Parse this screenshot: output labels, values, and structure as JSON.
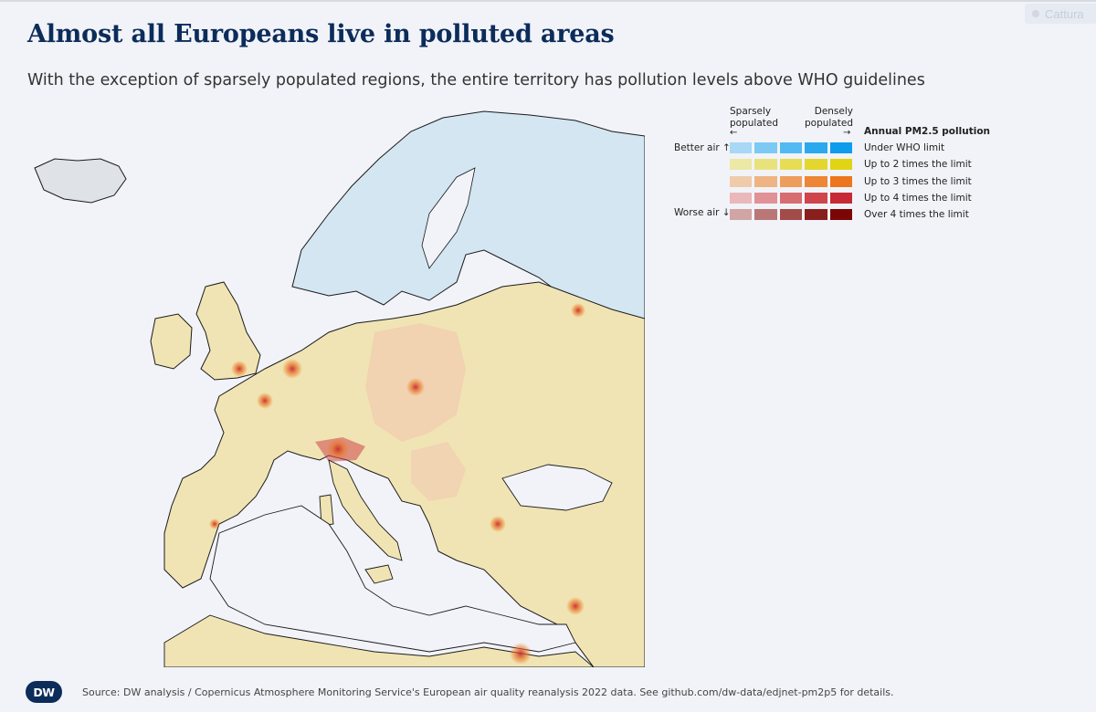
{
  "header": {
    "title": "Almost all Europeans live in polluted areas",
    "subtitle": "With the exception of sparsely populated regions, the entire territory has pollution levels above WHO guidelines"
  },
  "top_chip": {
    "label": "Cattura"
  },
  "legend": {
    "sparse_line1": "Sparsely",
    "sparse_line2": "populated",
    "dense_line1": "Densely",
    "dense_line2": "populated",
    "arrow_left": "←",
    "arrow_right": "→",
    "title": "Annual PM2.5 pollution",
    "better": "Better air ↑",
    "worse": "Worse air ↓",
    "classes": [
      {
        "label": "Under WHO limit",
        "colors": [
          "#a8d8f5",
          "#7ccaf4",
          "#52baf2",
          "#2aa9ef",
          "#0f9ced"
        ]
      },
      {
        "label": "Up to 2 times the limit",
        "colors": [
          "#ece8a6",
          "#e9e27c",
          "#e6dc55",
          "#e3d62f",
          "#e1d414"
        ]
      },
      {
        "label": "Up to 3 times the limit",
        "colors": [
          "#f0cbaa",
          "#efb483",
          "#ee9d5c",
          "#ed8636",
          "#ec7620"
        ]
      },
      {
        "label": "Up to 4 times the limit",
        "colors": [
          "#e8b8bb",
          "#e09296",
          "#d76c71",
          "#cf454c",
          "#c72a34"
        ]
      },
      {
        "label": "Over 4 times the limit",
        "colors": [
          "#d1a5a4",
          "#b97877",
          "#a14b4a",
          "#89201e",
          "#7a0606"
        ]
      }
    ]
  },
  "map": {
    "colors": {
      "sea": "#f1f3f8",
      "under_limit": "#d3e6f1",
      "up_to_2x": "#f0e4b4",
      "up_to_3x": "#f1cfb0",
      "no_data": "#dfe2e6",
      "border": "#5a5a5a",
      "coast": "#1a1a1a"
    }
  },
  "footer": {
    "logo": "DW",
    "source": "Source: DW analysis / Copernicus Atmosphere Monitoring Service's European air quality reanalysis 2022 data. See github.com/dw-data/edjnet-pm2p5 for details."
  }
}
